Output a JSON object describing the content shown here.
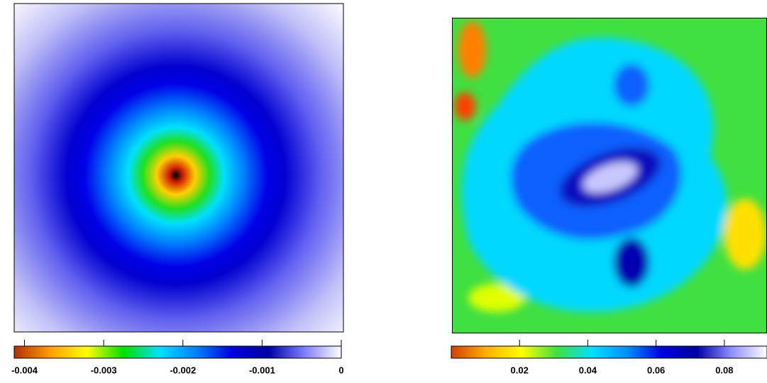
{
  "chart_data": [
    {
      "type": "colorbar",
      "xlim": [
        -0.00413,
        0
      ],
      "xticks": [
        -0.004,
        -0.003,
        -0.002,
        -0.001,
        0
      ],
      "colormap": [
        "#b03000",
        "#ffa000",
        "#ffff00",
        "#00e000",
        "#00e0ff",
        "#0080ff",
        "#0000e0",
        "#0000a0",
        "#8080ff",
        "#ffffff"
      ]
    },
    {
      "type": "colorbar",
      "xlim": [
        0,
        0.0925
      ],
      "xticks": [
        0.02,
        0.04,
        0.06,
        0.08
      ],
      "colormap": [
        "#d04000",
        "#ffb000",
        "#ffff00",
        "#40e040",
        "#00e0ff",
        "#0090ff",
        "#0000e0",
        "#0000a0",
        "#9090ff",
        "#ffffff"
      ]
    }
  ]
}
